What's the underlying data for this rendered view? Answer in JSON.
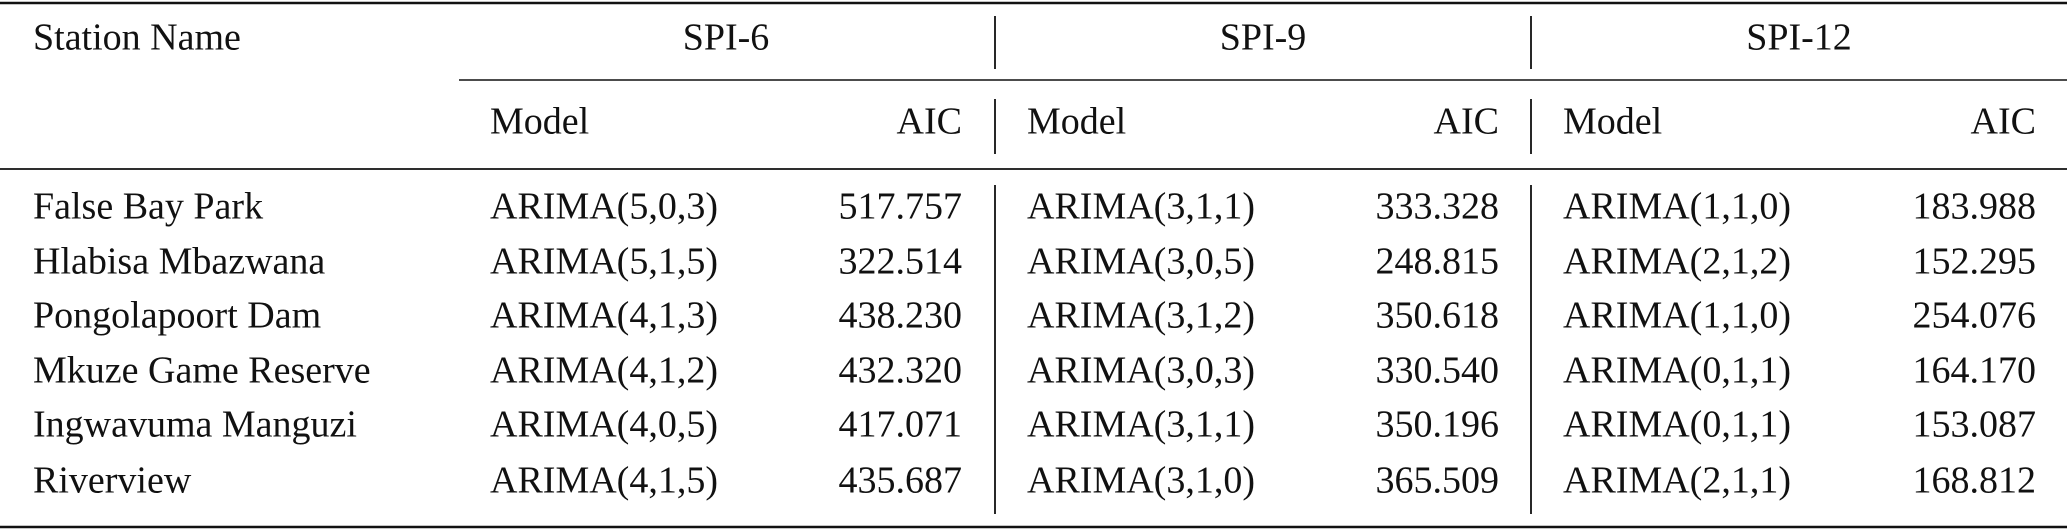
{
  "table": {
    "header": "Station Name",
    "groups": [
      {
        "title": "SPI-6",
        "columns": [
          "Model",
          "AIC"
        ]
      },
      {
        "title": "SPI-9",
        "columns": [
          "Model",
          "AIC"
        ]
      },
      {
        "title": "SPI-12",
        "columns": [
          "Model",
          "AIC"
        ]
      }
    ],
    "rows": [
      [
        "False Bay Park",
        "ARIMA(5,0,3)",
        "517.757",
        "ARIMA(3,1,1)",
        "333.328",
        "ARIMA(1,1,0)",
        "183.988"
      ],
      [
        "Hlabisa Mbazwana",
        "ARIMA(5,1,5)",
        "322.514",
        "ARIMA(3,0,5)",
        "248.815",
        "ARIMA(2,1,2)",
        "152.295"
      ],
      [
        "Pongolapoort Dam",
        "ARIMA(4,1,3)",
        "438.230",
        "ARIMA(3,1,2)",
        "350.618",
        "ARIMA(1,1,0)",
        "254.076"
      ],
      [
        "Mkuze Game Reserve",
        "ARIMA(4,1,2)",
        "432.320",
        "ARIMA(3,0,3)",
        "330.540",
        "ARIMA(0,1,1)",
        "164.170"
      ],
      [
        "Ingwavuma Manguzi",
        "ARIMA(4,0,5)",
        "417.071",
        "ARIMA(3,1,1)",
        "350.196",
        "ARIMA(0,1,1)",
        "153.087"
      ],
      [
        "Riverview",
        "ARIMA(4,1,5)",
        "435.687",
        "ARIMA(3,1,0)",
        "365.509",
        "ARIMA(2,1,1)",
        "168.812"
      ]
    ]
  }
}
